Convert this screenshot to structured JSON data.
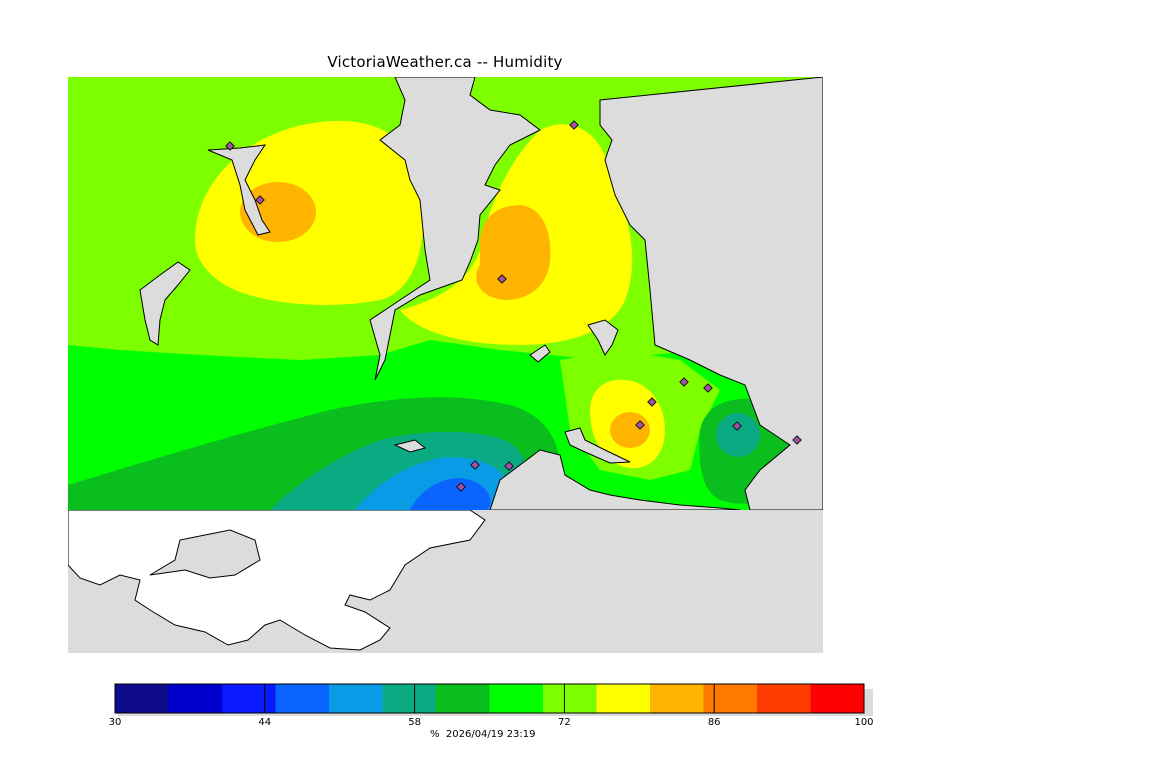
{
  "title": "VictoriaWeather.ca -- Humidity",
  "legend": {
    "min": 30,
    "max": 100,
    "ticks": [
      "30",
      "44",
      "58",
      "72",
      "86",
      "100"
    ],
    "tick_values": [
      30,
      44,
      58,
      72,
      86,
      100
    ],
    "unit": "%",
    "timestamp": "2026/04/19 23:19",
    "colors": [
      "#0d0a8c",
      "#0000cd",
      "#0a1aff",
      "#0a64ff",
      "#0a9be6",
      "#0aaa82",
      "#0abe1e",
      "#00ff00",
      "#7dff00",
      "#ffff00",
      "#ffb400",
      "#ff7800",
      "#ff3c00",
      "#ff0000"
    ]
  },
  "map": {
    "background": "#dcdcdc",
    "land_color": "#ffffff",
    "coast_color": "#000000",
    "station_marker": "diamond"
  }
}
